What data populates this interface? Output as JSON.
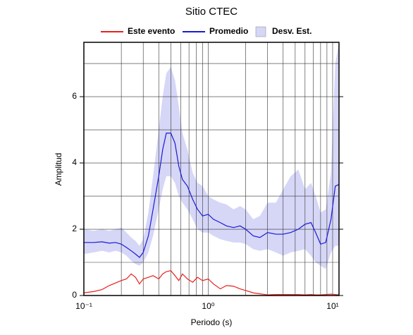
{
  "chart_data": {
    "type": "line",
    "title": "Sitio CTEC",
    "xlabel": "Periodo (s)",
    "ylabel": "Amplitud",
    "xscale": "log",
    "xlim": [
      0.1,
      11.25
    ],
    "ylim": [
      0,
      7.64
    ],
    "xticks": [
      {
        "value": 0.1,
        "label": "10⁻¹"
      },
      {
        "value": 1,
        "label": "10⁰"
      },
      {
        "value": 10,
        "label": "10¹"
      }
    ],
    "xminor_ticks": [
      0.2,
      0.3,
      0.4,
      0.5,
      0.6,
      0.7,
      0.8,
      0.9,
      2,
      3,
      4,
      5,
      6,
      7,
      8,
      9
    ],
    "yticks": [
      0,
      2,
      4,
      6
    ],
    "yminor_ticks": [
      1,
      3,
      5,
      7
    ],
    "grid": true,
    "x": [
      0.1,
      0.12,
      0.14,
      0.16,
      0.18,
      0.2,
      0.22,
      0.24,
      0.26,
      0.28,
      0.3,
      0.33,
      0.36,
      0.4,
      0.43,
      0.46,
      0.5,
      0.54,
      0.58,
      0.62,
      0.68,
      0.75,
      0.82,
      0.9,
      1.0,
      1.1,
      1.25,
      1.4,
      1.6,
      1.8,
      2.0,
      2.3,
      2.6,
      3.0,
      3.5,
      4.0,
      4.6,
      5.3,
      6.0,
      6.7,
      7.3,
      8.0,
      8.8,
      9.7,
      10.5,
      11.25
    ],
    "band": {
      "name": "Desv. Est.",
      "color": "#d6d6f7",
      "lower": [
        1.25,
        1.3,
        1.35,
        1.3,
        1.35,
        1.3,
        1.2,
        1.05,
        0.95,
        0.9,
        1.0,
        1.3,
        1.8,
        2.6,
        3.2,
        3.6,
        3.6,
        3.4,
        3.0,
        2.8,
        2.6,
        2.3,
        2.0,
        1.9,
        1.9,
        1.8,
        1.7,
        1.65,
        1.6,
        1.6,
        1.55,
        1.4,
        1.35,
        1.4,
        1.3,
        1.2,
        1.3,
        1.35,
        1.4,
        1.2,
        1.0,
        0.9,
        0.8,
        1.3,
        1.5,
        1.5
      ],
      "upper": [
        2.0,
        1.95,
        2.0,
        1.95,
        2.0,
        2.05,
        1.9,
        1.75,
        1.65,
        1.5,
        1.7,
        2.5,
        3.6,
        5.0,
        6.0,
        6.7,
        6.9,
        6.5,
        5.7,
        4.9,
        4.4,
        3.7,
        3.4,
        3.3,
        3.0,
        2.9,
        2.8,
        2.75,
        2.6,
        2.7,
        2.6,
        2.3,
        2.4,
        2.8,
        2.8,
        3.2,
        3.6,
        3.8,
        3.2,
        3.4,
        3.0,
        2.5,
        2.6,
        3.7,
        7.0,
        7.64
      ]
    },
    "series": [
      {
        "name": "Este evento",
        "color": "#e8201c",
        "values": [
          0.08,
          0.12,
          0.18,
          0.3,
          0.38,
          0.45,
          0.5,
          0.65,
          0.55,
          0.35,
          0.5,
          0.55,
          0.6,
          0.5,
          0.65,
          0.72,
          0.75,
          0.6,
          0.45,
          0.65,
          0.5,
          0.4,
          0.55,
          0.45,
          0.5,
          0.35,
          0.2,
          0.3,
          0.28,
          0.2,
          0.15,
          0.08,
          0.05,
          0.02,
          0.03,
          0.03,
          0.03,
          0.03,
          0.02,
          0.03,
          0.02,
          0.02,
          0.03,
          0.04,
          0.03,
          0.02
        ]
      },
      {
        "name": "Promedio",
        "color": "#1a1ad6",
        "values": [
          1.6,
          1.6,
          1.62,
          1.58,
          1.6,
          1.55,
          1.45,
          1.35,
          1.25,
          1.15,
          1.3,
          1.8,
          2.6,
          3.6,
          4.4,
          4.9,
          4.9,
          4.6,
          3.9,
          3.5,
          3.3,
          2.9,
          2.6,
          2.4,
          2.45,
          2.3,
          2.2,
          2.1,
          2.05,
          2.1,
          2.0,
          1.8,
          1.75,
          1.9,
          1.85,
          1.85,
          1.9,
          2.0,
          2.15,
          2.2,
          1.9,
          1.55,
          1.6,
          2.3,
          3.3,
          3.35
        ]
      }
    ]
  }
}
